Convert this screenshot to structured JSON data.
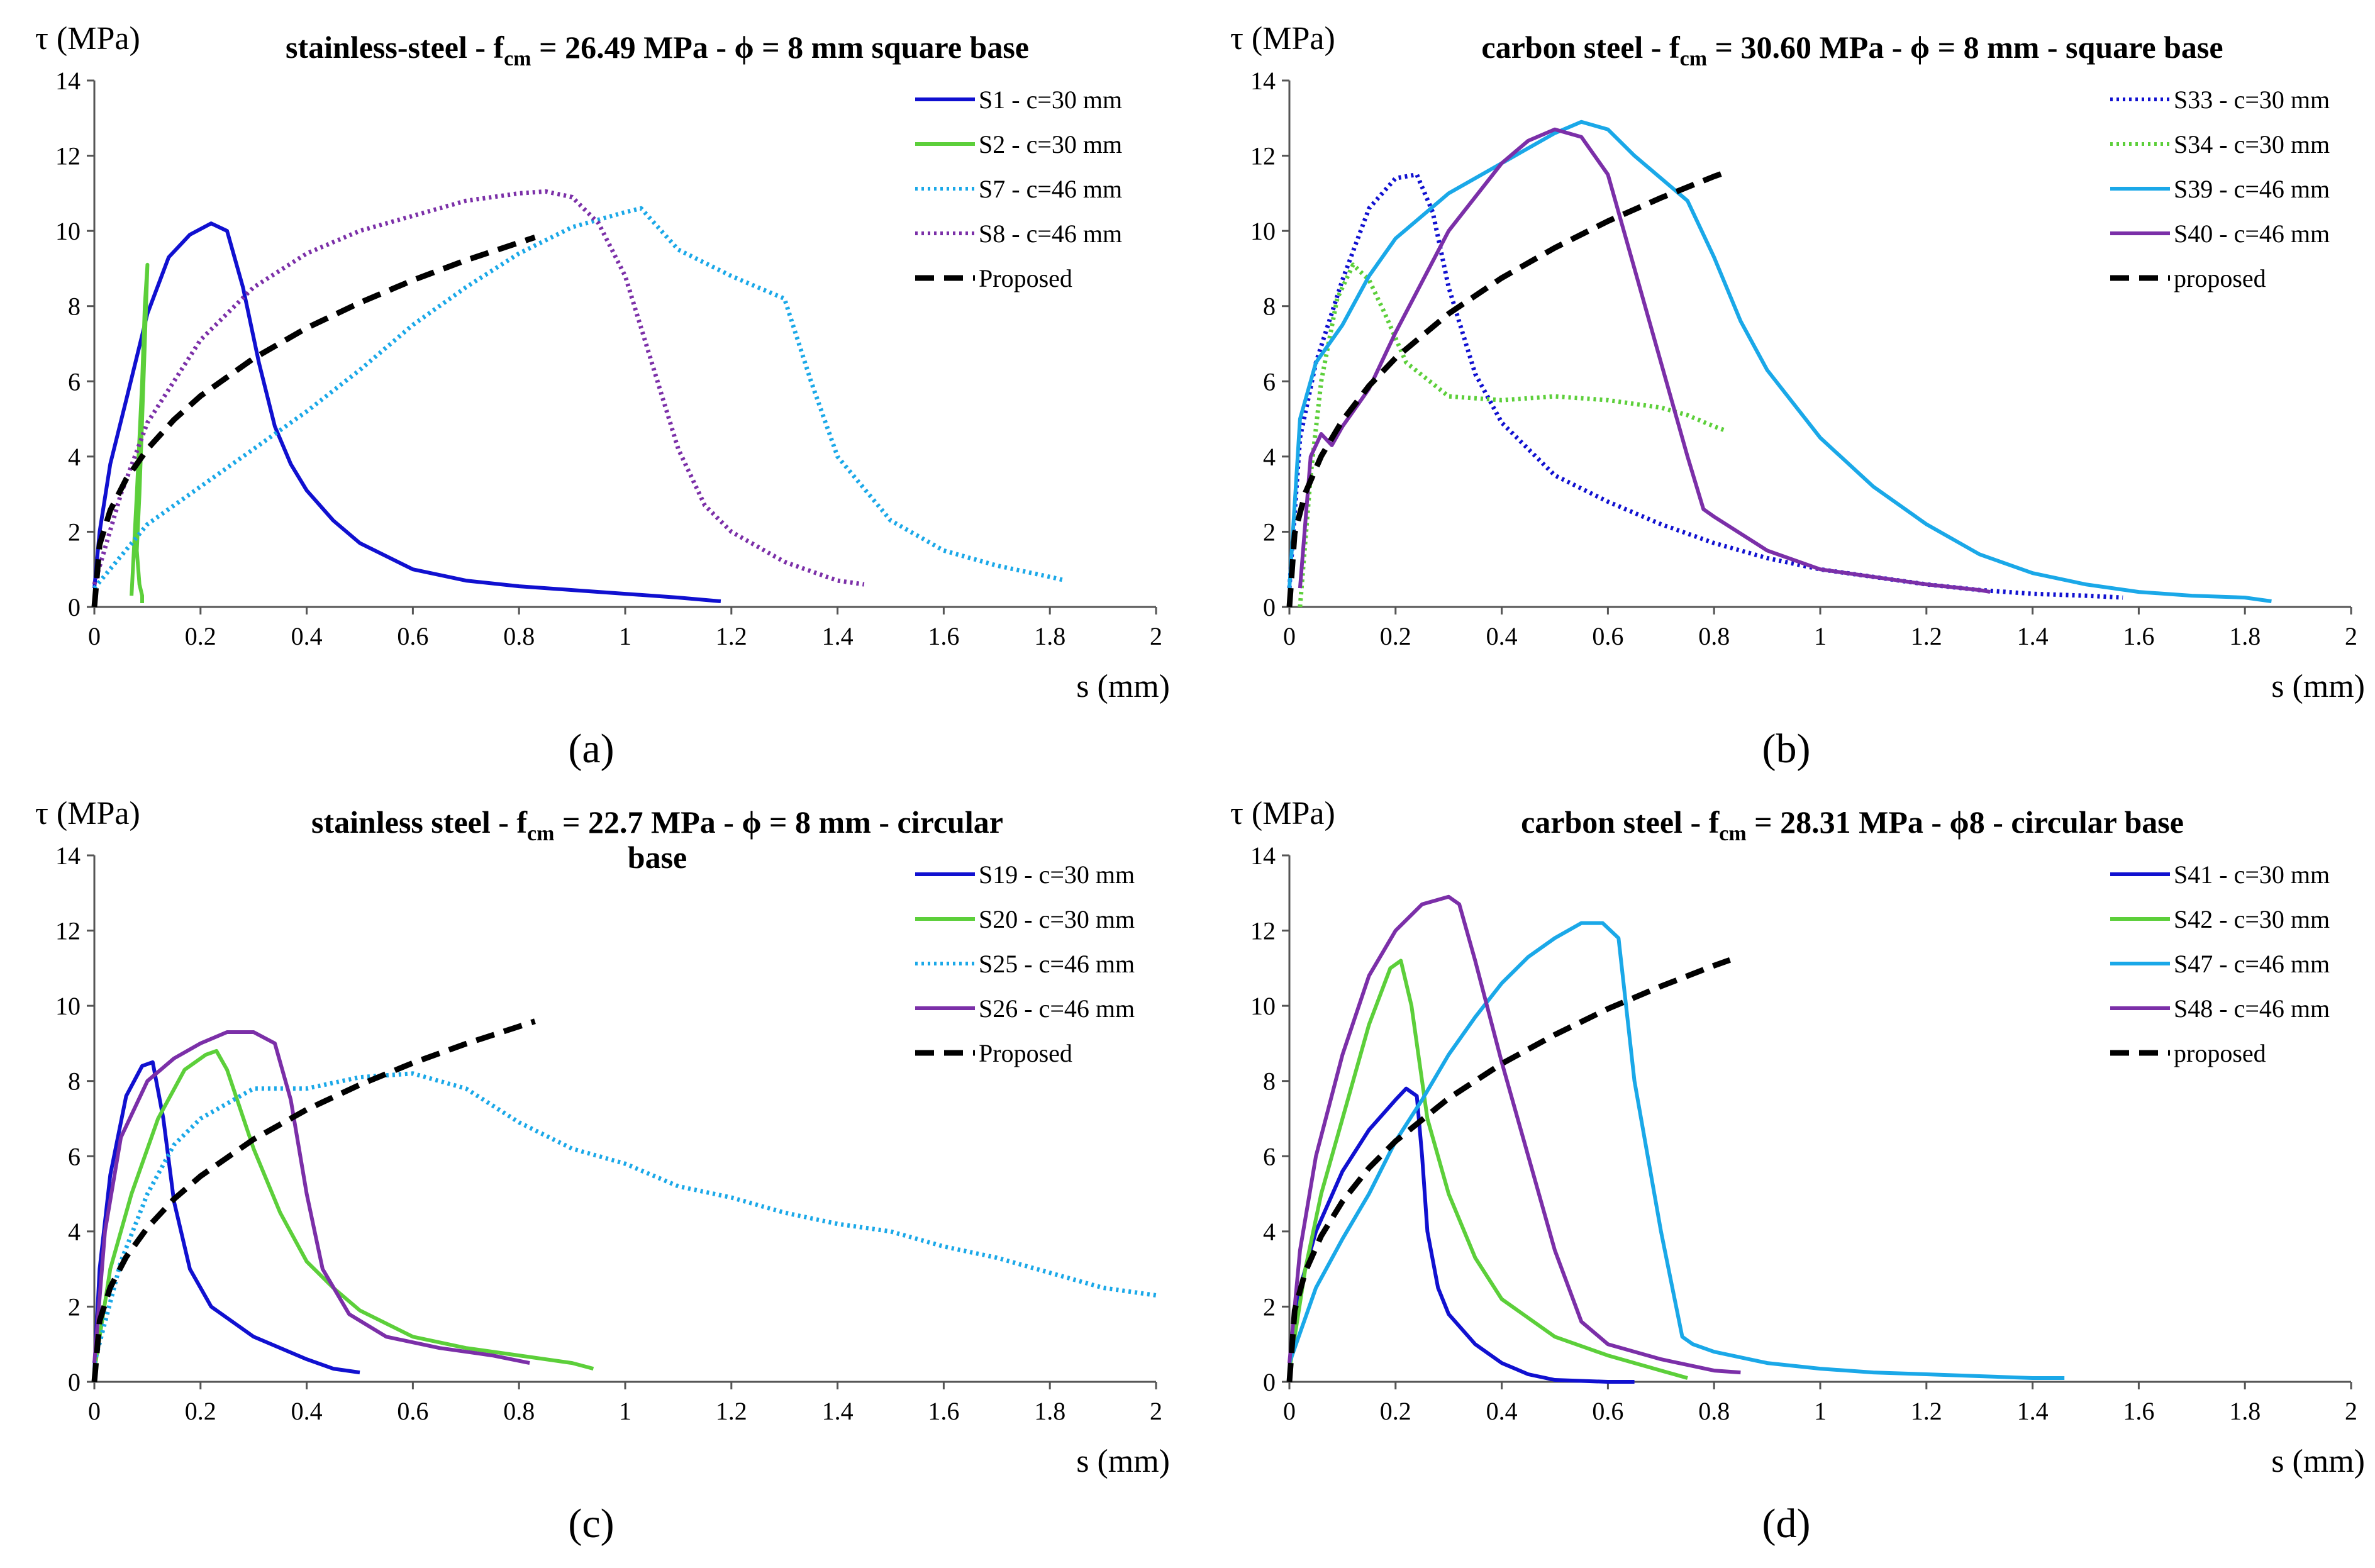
{
  "chart_data": [
    {
      "type": "line",
      "panel_label": "(a)",
      "title_pre": "stainless-steel - f",
      "title_sub": "cm",
      "title_post": " = 26.49 MPa - ϕ = 8 mm square base",
      "ylabel": "τ (MPa)",
      "xlabel": "s (mm)",
      "xlim": [
        0,
        2
      ],
      "ylim": [
        0,
        14
      ],
      "xticks": [
        "0",
        "0.2",
        "0.4",
        "0.6",
        "0.8",
        "1",
        "1.2",
        "1.4",
        "1.6",
        "1.8",
        "2"
      ],
      "yticks": [
        "0",
        "2",
        "4",
        "6",
        "8",
        "10",
        "12",
        "14"
      ],
      "series": [
        {
          "name": "S1 - c=30 mm",
          "color": "#1010d0",
          "style": "solid",
          "x": [
            0,
            0.01,
            0.03,
            0.06,
            0.1,
            0.14,
            0.18,
            0.22,
            0.25,
            0.28,
            0.31,
            0.34,
            0.37,
            0.4,
            0.45,
            0.5,
            0.6,
            0.7,
            0.8,
            0.9,
            1.0,
            1.1,
            1.18
          ],
          "y": [
            0.5,
            2.0,
            3.8,
            5.5,
            7.8,
            9.3,
            9.9,
            10.2,
            10.0,
            8.5,
            6.5,
            4.8,
            3.8,
            3.1,
            2.3,
            1.7,
            1.0,
            0.7,
            0.55,
            0.45,
            0.35,
            0.25,
            0.15
          ]
        },
        {
          "name": "S2 - c=30 mm",
          "color": "#5ccf3a",
          "style": "solid",
          "x": [
            0.07,
            0.08,
            0.09,
            0.095,
            0.1,
            0.095,
            0.09,
            0.085,
            0.08,
            0.085,
            0.09,
            0.09
          ],
          "y": [
            0.3,
            3.0,
            6.0,
            8.0,
            9.1,
            7.0,
            5.0,
            3.0,
            1.5,
            0.6,
            0.3,
            0.1
          ]
        },
        {
          "name": "S7 - c=46 mm",
          "color": "#1aa8e8",
          "style": "dotted",
          "x": [
            0,
            0.1,
            0.2,
            0.3,
            0.4,
            0.5,
            0.6,
            0.7,
            0.8,
            0.9,
            1.0,
            1.03,
            1.1,
            1.2,
            1.3,
            1.35,
            1.4,
            1.5,
            1.6,
            1.7,
            1.8,
            1.83
          ],
          "y": [
            0.5,
            2.2,
            3.2,
            4.2,
            5.2,
            6.3,
            7.5,
            8.5,
            9.4,
            10.1,
            10.5,
            10.6,
            9.5,
            8.8,
            8.2,
            6.0,
            4.0,
            2.3,
            1.5,
            1.1,
            0.8,
            0.7
          ]
        },
        {
          "name": "S8 - c=46 mm",
          "color": "#7b2fa8",
          "style": "dotted",
          "x": [
            0,
            0.05,
            0.1,
            0.2,
            0.3,
            0.4,
            0.5,
            0.6,
            0.7,
            0.8,
            0.85,
            0.9,
            0.95,
            1.0,
            1.05,
            1.1,
            1.15,
            1.2,
            1.3,
            1.4,
            1.45
          ],
          "y": [
            0.6,
            3.0,
            4.9,
            7.1,
            8.5,
            9.4,
            10.0,
            10.4,
            10.8,
            11.0,
            11.05,
            10.9,
            10.2,
            8.8,
            6.5,
            4.2,
            2.7,
            2.0,
            1.2,
            0.7,
            0.6
          ]
        },
        {
          "name": "Proposed",
          "color": "#000000",
          "style": "dashed",
          "x": [
            0,
            0.01,
            0.03,
            0.06,
            0.1,
            0.15,
            0.2,
            0.3,
            0.4,
            0.5,
            0.6,
            0.7,
            0.8,
            0.83
          ],
          "y": [
            0,
            1.66,
            2.57,
            3.4,
            4.2,
            4.98,
            5.61,
            6.61,
            7.42,
            8.09,
            8.69,
            9.22,
            9.69,
            9.83
          ]
        }
      ]
    },
    {
      "type": "line",
      "panel_label": "(b)",
      "title_pre": "carbon steel - f",
      "title_sub": "cm",
      "title_post": " = 30.60 MPa - ϕ = 8 mm - square base",
      "ylabel": "τ (MPa)",
      "xlabel": "s (mm)",
      "xlim": [
        0,
        2
      ],
      "ylim": [
        0,
        14
      ],
      "xticks": [
        "0",
        "0.2",
        "0.4",
        "0.6",
        "0.8",
        "1",
        "1.2",
        "1.4",
        "1.6",
        "1.8",
        "2"
      ],
      "yticks": [
        "0",
        "2",
        "4",
        "6",
        "8",
        "10",
        "12",
        "14"
      ],
      "series": [
        {
          "name": "S33 - c=30 mm",
          "color": "#1010d0",
          "style": "dotted",
          "x": [
            0,
            0.02,
            0.05,
            0.1,
            0.15,
            0.2,
            0.24,
            0.27,
            0.3,
            0.35,
            0.4,
            0.5,
            0.6,
            0.7,
            0.8,
            0.9,
            1.0,
            1.1,
            1.2,
            1.3,
            1.4,
            1.5,
            1.57
          ],
          "y": [
            0.5,
            4.5,
            6.5,
            8.7,
            10.6,
            11.4,
            11.5,
            10.5,
            8.5,
            6.2,
            4.9,
            3.5,
            2.8,
            2.2,
            1.7,
            1.3,
            1.0,
            0.8,
            0.6,
            0.45,
            0.35,
            0.3,
            0.25
          ]
        },
        {
          "name": "S34 - c=30 mm",
          "color": "#5ccf3a",
          "style": "dotted",
          "x": [
            0.02,
            0.04,
            0.06,
            0.09,
            0.12,
            0.15,
            0.18,
            0.22,
            0.3,
            0.4,
            0.5,
            0.6,
            0.7,
            0.75,
            0.8,
            0.82
          ],
          "y": [
            0,
            3.5,
            6.0,
            8.2,
            9.1,
            8.7,
            7.8,
            6.5,
            5.6,
            5.5,
            5.6,
            5.5,
            5.3,
            5.1,
            4.8,
            4.7
          ]
        },
        {
          "name": "S39 - c=46 mm",
          "color": "#1aa8e8",
          "style": "solid",
          "x": [
            0,
            0.02,
            0.05,
            0.1,
            0.15,
            0.2,
            0.3,
            0.4,
            0.5,
            0.55,
            0.6,
            0.65,
            0.7,
            0.75,
            0.8,
            0.85,
            0.9,
            1.0,
            1.1,
            1.2,
            1.3,
            1.4,
            1.5,
            1.6,
            1.7,
            1.8,
            1.85
          ],
          "y": [
            0.5,
            5.0,
            6.5,
            7.5,
            8.8,
            9.8,
            11.0,
            11.8,
            12.6,
            12.9,
            12.7,
            12.0,
            11.4,
            10.8,
            9.3,
            7.6,
            6.3,
            4.5,
            3.2,
            2.2,
            1.4,
            0.9,
            0.6,
            0.4,
            0.3,
            0.25,
            0.15
          ]
        },
        {
          "name": "S40 - c=46 mm",
          "color": "#7b2fa8",
          "style": "solid",
          "x": [
            0.02,
            0.04,
            0.06,
            0.08,
            0.1,
            0.15,
            0.2,
            0.3,
            0.4,
            0.45,
            0.5,
            0.55,
            0.6,
            0.65,
            0.7,
            0.75,
            0.78,
            0.8,
            0.9,
            1.0,
            1.1,
            1.2,
            1.3,
            1.32
          ],
          "y": [
            0.5,
            4.0,
            4.6,
            4.3,
            4.8,
            5.8,
            7.3,
            10.0,
            11.8,
            12.4,
            12.7,
            12.5,
            11.5,
            9.0,
            6.5,
            4.0,
            2.6,
            2.4,
            1.5,
            1.0,
            0.8,
            0.6,
            0.45,
            0.4
          ]
        },
        {
          "name": "proposed",
          "color": "#000000",
          "style": "dashed",
          "x": [
            0,
            0.01,
            0.03,
            0.06,
            0.1,
            0.15,
            0.2,
            0.3,
            0.4,
            0.5,
            0.6,
            0.7,
            0.8,
            0.83
          ],
          "y": [
            0,
            1.96,
            3.03,
            4.01,
            4.96,
            5.88,
            6.62,
            7.8,
            8.75,
            9.55,
            10.26,
            10.88,
            11.45,
            11.6
          ]
        }
      ]
    },
    {
      "type": "line",
      "panel_label": "(c)",
      "title_pre": "stainless steel - f",
      "title_sub": "cm",
      "title_post": " = 22.7 MPa - ϕ = 8 mm - circular",
      "title_line2": "base",
      "ylabel": "τ (MPa)",
      "xlabel": "s (mm)",
      "xlim": [
        0,
        2
      ],
      "ylim": [
        0,
        14
      ],
      "xticks": [
        "0",
        "0.2",
        "0.4",
        "0.6",
        "0.8",
        "1",
        "1.2",
        "1.4",
        "1.6",
        "1.8",
        "2"
      ],
      "yticks": [
        "0",
        "2",
        "4",
        "6",
        "8",
        "10",
        "12",
        "14"
      ],
      "series": [
        {
          "name": "S19 - c=30 mm",
          "color": "#1010d0",
          "style": "solid",
          "x": [
            0,
            0.01,
            0.03,
            0.06,
            0.09,
            0.11,
            0.13,
            0.15,
            0.18,
            0.22,
            0.3,
            0.4,
            0.45,
            0.5
          ],
          "y": [
            0.3,
            3.0,
            5.5,
            7.6,
            8.4,
            8.5,
            7.0,
            4.8,
            3.0,
            2.0,
            1.2,
            0.6,
            0.35,
            0.25
          ]
        },
        {
          "name": "S20 - c=30 mm",
          "color": "#5ccf3a",
          "style": "solid",
          "x": [
            0,
            0.03,
            0.07,
            0.12,
            0.17,
            0.21,
            0.23,
            0.25,
            0.3,
            0.35,
            0.4,
            0.45,
            0.5,
            0.6,
            0.7,
            0.8,
            0.9,
            0.94
          ],
          "y": [
            0.3,
            3.0,
            5.0,
            7.0,
            8.3,
            8.7,
            8.8,
            8.3,
            6.2,
            4.5,
            3.2,
            2.5,
            1.9,
            1.2,
            0.9,
            0.7,
            0.5,
            0.35
          ]
        },
        {
          "name": "S25 - c=46 mm",
          "color": "#1aa8e8",
          "style": "dotted",
          "x": [
            0,
            0.05,
            0.1,
            0.15,
            0.2,
            0.3,
            0.4,
            0.5,
            0.6,
            0.7,
            0.8,
            0.9,
            1.0,
            1.1,
            1.2,
            1.3,
            1.4,
            1.5,
            1.6,
            1.7,
            1.8,
            1.9,
            2.0
          ],
          "y": [
            0.5,
            3.2,
            5.0,
            6.3,
            7.0,
            7.8,
            7.8,
            8.1,
            8.2,
            7.8,
            6.9,
            6.2,
            5.8,
            5.2,
            4.9,
            4.5,
            4.2,
            4.0,
            3.6,
            3.3,
            2.9,
            2.5,
            2.3
          ]
        },
        {
          "name": "S26 - c=46 mm",
          "color": "#7b2fa8",
          "style": "solid",
          "x": [
            0,
            0.02,
            0.05,
            0.1,
            0.15,
            0.2,
            0.25,
            0.3,
            0.34,
            0.37,
            0.4,
            0.43,
            0.48,
            0.55,
            0.65,
            0.75,
            0.82
          ],
          "y": [
            0.5,
            4.0,
            6.5,
            8.0,
            8.6,
            9.0,
            9.3,
            9.3,
            9.0,
            7.5,
            5.0,
            3.0,
            1.8,
            1.2,
            0.9,
            0.7,
            0.5
          ]
        },
        {
          "name": "Proposed",
          "color": "#000000",
          "style": "dashed",
          "x": [
            0,
            0.01,
            0.03,
            0.06,
            0.1,
            0.15,
            0.2,
            0.3,
            0.4,
            0.5,
            0.6,
            0.7,
            0.8,
            0.83
          ],
          "y": [
            0,
            1.62,
            2.51,
            3.32,
            4.1,
            4.86,
            5.47,
            6.45,
            7.24,
            7.9,
            8.48,
            8.99,
            9.45,
            9.59
          ]
        }
      ]
    },
    {
      "type": "line",
      "panel_label": "(d)",
      "title_pre": "carbon steel - f",
      "title_sub": "cm",
      "title_post": " = 28.31 MPa - ϕ8 - circular base",
      "ylabel": "τ (MPa)",
      "xlabel": "s (mm)",
      "xlim": [
        0,
        2
      ],
      "ylim": [
        0,
        14
      ],
      "xticks": [
        "0",
        "0.2",
        "0.4",
        "0.6",
        "0.8",
        "1",
        "1.2",
        "1.4",
        "1.6",
        "1.8",
        "2"
      ],
      "yticks": [
        "0",
        "2",
        "4",
        "6",
        "8",
        "10",
        "12",
        "14"
      ],
      "series": [
        {
          "name": "S41 - c=30 mm",
          "color": "#1010d0",
          "style": "solid",
          "x": [
            0,
            0.02,
            0.05,
            0.1,
            0.15,
            0.2,
            0.22,
            0.24,
            0.25,
            0.26,
            0.28,
            0.3,
            0.35,
            0.4,
            0.45,
            0.5,
            0.6,
            0.65
          ],
          "y": [
            0.3,
            2.5,
            4.0,
            5.6,
            6.7,
            7.5,
            7.8,
            7.6,
            6.0,
            4.0,
            2.5,
            1.8,
            1.0,
            0.5,
            0.2,
            0.05,
            0,
            0
          ]
        },
        {
          "name": "S42 - c=30 mm",
          "color": "#5ccf3a",
          "style": "solid",
          "x": [
            0,
            0.03,
            0.06,
            0.1,
            0.15,
            0.19,
            0.21,
            0.23,
            0.26,
            0.3,
            0.35,
            0.4,
            0.5,
            0.6,
            0.7,
            0.75
          ],
          "y": [
            0.3,
            3.0,
            5.0,
            7.0,
            9.5,
            11.0,
            11.2,
            10.0,
            7.0,
            5.0,
            3.3,
            2.2,
            1.2,
            0.7,
            0.3,
            0.1
          ]
        },
        {
          "name": "S47 - c=46 mm",
          "color": "#1aa8e8",
          "style": "solid",
          "x": [
            0,
            0.05,
            0.1,
            0.15,
            0.2,
            0.25,
            0.3,
            0.35,
            0.4,
            0.45,
            0.5,
            0.55,
            0.59,
            0.62,
            0.65,
            0.7,
            0.74,
            0.76,
            0.8,
            0.9,
            1.0,
            1.1,
            1.2,
            1.3,
            1.4,
            1.46
          ],
          "y": [
            0.5,
            2.5,
            3.8,
            5.0,
            6.4,
            7.5,
            8.7,
            9.7,
            10.6,
            11.3,
            11.8,
            12.2,
            12.2,
            11.8,
            8.0,
            4.0,
            1.2,
            1.0,
            0.8,
            0.5,
            0.35,
            0.25,
            0.2,
            0.15,
            0.1,
            0.1
          ]
        },
        {
          "name": "S48 - c=46 mm",
          "color": "#7b2fa8",
          "style": "solid",
          "x": [
            0,
            0.02,
            0.05,
            0.1,
            0.15,
            0.2,
            0.25,
            0.3,
            0.32,
            0.35,
            0.4,
            0.45,
            0.5,
            0.55,
            0.6,
            0.7,
            0.8,
            0.85
          ],
          "y": [
            0.5,
            3.5,
            6.0,
            8.7,
            10.8,
            12.0,
            12.7,
            12.9,
            12.7,
            11.2,
            8.5,
            6.0,
            3.5,
            1.6,
            1.0,
            0.6,
            0.3,
            0.25
          ]
        },
        {
          "name": "proposed",
          "color": "#000000",
          "style": "dashed",
          "x": [
            0,
            0.01,
            0.03,
            0.06,
            0.1,
            0.15,
            0.2,
            0.3,
            0.4,
            0.5,
            0.6,
            0.7,
            0.8,
            0.83
          ],
          "y": [
            0,
            1.9,
            2.93,
            3.88,
            4.8,
            5.69,
            6.4,
            7.54,
            8.46,
            9.23,
            9.92,
            10.52,
            11.07,
            11.22
          ]
        }
      ]
    }
  ]
}
